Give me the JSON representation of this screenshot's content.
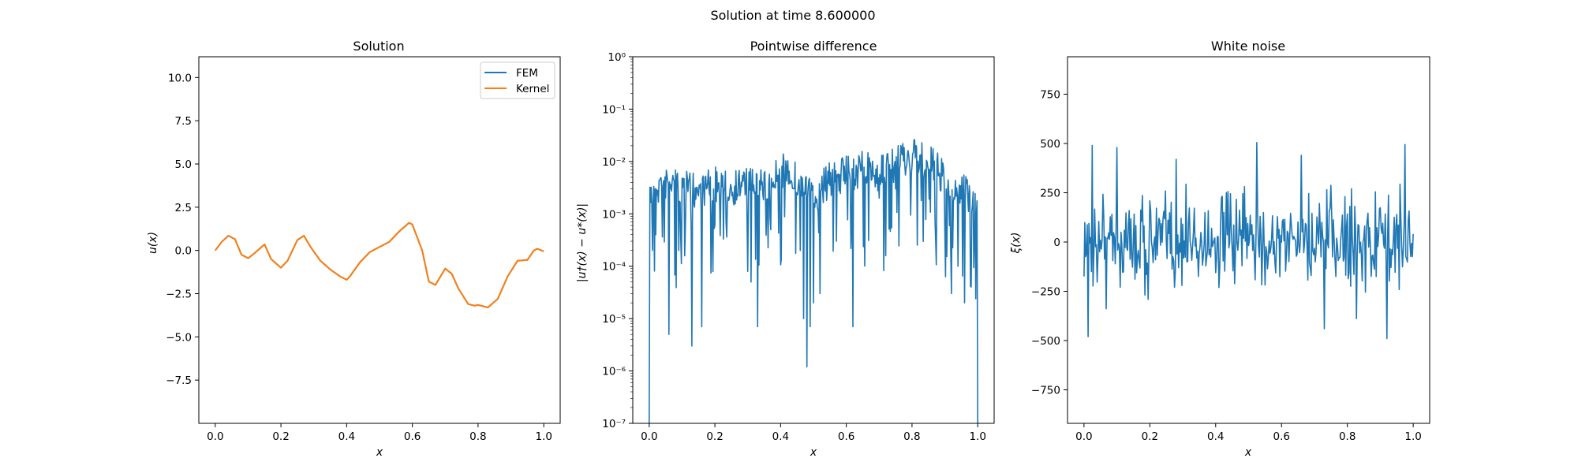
{
  "suptitle": "Solution at time 8.600000",
  "colors": {
    "fem": "#1f77b4",
    "kernel": "#ff7f0e"
  },
  "chart_data": [
    {
      "type": "line",
      "title": "Solution",
      "xlabel": "x",
      "ylabel": "u(x)",
      "xlim": [
        -0.05,
        1.05
      ],
      "ylim": [
        -10,
        11.2
      ],
      "xticks": [
        "0.0",
        "0.2",
        "0.4",
        "0.6",
        "0.8",
        "1.0"
      ],
      "yticks": [
        "−7.5",
        "−5.0",
        "−2.5",
        "0.0",
        "2.5",
        "5.0",
        "7.5",
        "10.0"
      ],
      "legend": {
        "position": "upper-right",
        "entries": [
          "FEM",
          "Kernel"
        ]
      },
      "x": [
        0.0,
        0.02,
        0.04,
        0.06,
        0.08,
        0.1,
        0.12,
        0.15,
        0.17,
        0.2,
        0.22,
        0.25,
        0.27,
        0.29,
        0.32,
        0.35,
        0.38,
        0.4,
        0.41,
        0.44,
        0.47,
        0.5,
        0.53,
        0.56,
        0.59,
        0.6,
        0.63,
        0.65,
        0.67,
        0.7,
        0.72,
        0.74,
        0.77,
        0.79,
        0.8,
        0.83,
        0.86,
        0.89,
        0.92,
        0.95,
        0.97,
        0.98,
        1.0
      ],
      "series": [
        {
          "name": "FEM",
          "values": [
            0.0,
            0.5,
            0.85,
            0.65,
            -0.25,
            -0.45,
            -0.15,
            0.35,
            -0.5,
            -1.0,
            -0.6,
            0.6,
            0.85,
            0.2,
            -0.6,
            -1.1,
            -1.5,
            -1.7,
            -1.5,
            -0.7,
            -0.1,
            0.2,
            0.5,
            1.1,
            1.6,
            1.5,
            0.0,
            -1.8,
            -2.0,
            -1.05,
            -1.35,
            -2.2,
            -3.1,
            -3.2,
            -3.15,
            -3.3,
            -2.8,
            -1.5,
            -0.6,
            -0.55,
            0.0,
            0.1,
            -0.05
          ]
        },
        {
          "name": "Kernel",
          "values": [
            0.0,
            0.5,
            0.85,
            0.65,
            -0.25,
            -0.45,
            -0.15,
            0.35,
            -0.5,
            -1.0,
            -0.6,
            0.6,
            0.85,
            0.2,
            -0.6,
            -1.1,
            -1.5,
            -1.7,
            -1.5,
            -0.7,
            -0.1,
            0.2,
            0.5,
            1.1,
            1.6,
            1.5,
            0.0,
            -1.8,
            -2.0,
            -1.05,
            -1.35,
            -2.2,
            -3.1,
            -3.2,
            -3.15,
            -3.3,
            -2.8,
            -1.5,
            -0.6,
            -0.55,
            0.0,
            0.1,
            -0.05
          ]
        }
      ]
    },
    {
      "type": "line",
      "title": "Pointwise difference",
      "xlabel": "x",
      "ylabel": "|u†(x) − u*(x)|",
      "yscale": "log",
      "xlim": [
        -0.05,
        1.05
      ],
      "ylim": [
        1e-07,
        1
      ],
      "xticks": [
        "0.0",
        "0.2",
        "0.4",
        "0.6",
        "0.8",
        "1.0"
      ],
      "yticks": [
        "10⁻⁷",
        "10⁻⁶",
        "10⁻⁵",
        "10⁻⁴",
        "10⁻³",
        "10⁻²",
        "10⁻¹",
        "10⁰"
      ],
      "envelope": {
        "x": [
          0.0,
          0.05,
          0.1,
          0.15,
          0.2,
          0.25,
          0.3,
          0.35,
          0.4,
          0.42,
          0.45,
          0.5,
          0.55,
          0.6,
          0.65,
          0.7,
          0.75,
          0.8,
          0.85,
          0.9,
          0.95,
          1.0
        ],
        "y": [
          0.005,
          0.009,
          0.007,
          0.006,
          0.008,
          0.007,
          0.009,
          0.008,
          0.013,
          0.016,
          0.009,
          0.004,
          0.01,
          0.013,
          0.016,
          0.012,
          0.02,
          0.027,
          0.022,
          0.01,
          0.006,
          0.004
        ]
      },
      "dips": [
        {
          "x": 0.0,
          "y": 1e-07
        },
        {
          "x": 0.01,
          "y": 0.0002
        },
        {
          "x": 0.02,
          "y": 0.0004
        },
        {
          "x": 0.06,
          "y": 5e-06
        },
        {
          "x": 0.09,
          "y": 0.0002
        },
        {
          "x": 0.11,
          "y": 0.0005
        },
        {
          "x": 0.13,
          "y": 3e-06
        },
        {
          "x": 0.16,
          "y": 7e-06
        },
        {
          "x": 0.19,
          "y": 0.0006
        },
        {
          "x": 0.3,
          "y": 8e-05
        },
        {
          "x": 0.31,
          "y": 5e-05
        },
        {
          "x": 0.33,
          "y": 7e-06
        },
        {
          "x": 0.37,
          "y": 0.0005
        },
        {
          "x": 0.46,
          "y": 0.0002
        },
        {
          "x": 0.47,
          "y": 1e-05
        },
        {
          "x": 0.48,
          "y": 1.2e-06
        },
        {
          "x": 0.49,
          "y": 7e-06
        },
        {
          "x": 0.5,
          "y": 2e-05
        },
        {
          "x": 0.52,
          "y": 3e-05
        },
        {
          "x": 0.57,
          "y": 0.0003
        },
        {
          "x": 0.62,
          "y": 7e-06
        },
        {
          "x": 0.7,
          "y": 0.002
        },
        {
          "x": 0.75,
          "y": 0.003
        },
        {
          "x": 0.9,
          "y": 0.0005
        },
        {
          "x": 0.92,
          "y": 3e-05
        },
        {
          "x": 0.94,
          "y": 0.0001
        },
        {
          "x": 0.96,
          "y": 2e-05
        },
        {
          "x": 0.98,
          "y": 4e-05
        },
        {
          "x": 0.99,
          "y": 0.0003
        },
        {
          "x": 1.0,
          "y": 1e-07
        }
      ]
    },
    {
      "type": "line",
      "title": "White noise",
      "xlabel": "x",
      "ylabel": "ξ(x)",
      "xlim": [
        -0.05,
        1.05
      ],
      "ylim": [
        -920,
        940
      ],
      "xticks": [
        "0.0",
        "0.2",
        "0.4",
        "0.6",
        "0.8",
        "1.0"
      ],
      "yticks": [
        "−750",
        "−500",
        "−250",
        "0",
        "250",
        "500",
        "750"
      ],
      "amplitude": {
        "typical": 180,
        "max": 500,
        "min": -490
      },
      "peaks": [
        {
          "x": 0.025,
          "y": 490
        },
        {
          "x": 0.012,
          "y": -480
        },
        {
          "x": 0.1,
          "y": 480
        },
        {
          "x": 0.525,
          "y": 505
        },
        {
          "x": 0.975,
          "y": 495
        },
        {
          "x": 0.73,
          "y": -440
        },
        {
          "x": 0.92,
          "y": -490
        },
        {
          "x": 0.28,
          "y": 420
        },
        {
          "x": 0.66,
          "y": 440
        }
      ]
    }
  ]
}
